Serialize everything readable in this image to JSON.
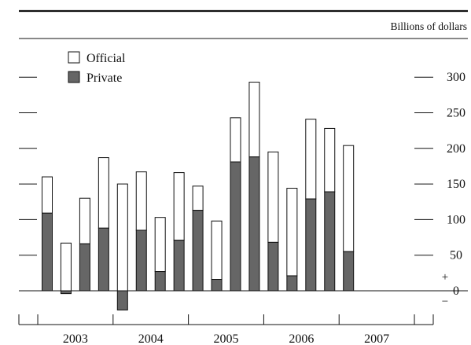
{
  "chart_data": {
    "type": "bar",
    "stacked": true,
    "unit_label": "Billions of dollars",
    "legend": [
      {
        "key": "official",
        "label": "Official",
        "color": "#ffffff"
      },
      {
        "key": "private",
        "label": "Private",
        "color": "#666666"
      }
    ],
    "legend_position": "top-left",
    "ylim": [
      -30,
      300
    ],
    "yticks": [
      0,
      50,
      100,
      150,
      200,
      250,
      300
    ],
    "zero_signs": {
      "plus": "+",
      "minus": "−"
    },
    "years": [
      "2003",
      "2004",
      "2005",
      "2006",
      "2007"
    ],
    "quarters_per_year": 4,
    "bars": [
      {
        "period": "2003 Q1",
        "private": 109,
        "total": 160
      },
      {
        "period": "2003 Q2",
        "private": -4,
        "total": 67
      },
      {
        "period": "2003 Q3",
        "private": 66,
        "total": 130
      },
      {
        "period": "2003 Q4",
        "private": 88,
        "total": 187
      },
      {
        "period": "2004 Q1",
        "private": -27,
        "total": 150
      },
      {
        "period": "2004 Q2",
        "private": 85,
        "total": 167
      },
      {
        "period": "2004 Q3",
        "private": 27,
        "total": 103
      },
      {
        "period": "2004 Q4",
        "private": 71,
        "total": 166
      },
      {
        "period": "2005 Q1",
        "private": 113,
        "total": 147
      },
      {
        "period": "2005 Q2",
        "private": 16,
        "total": 98
      },
      {
        "period": "2005 Q3",
        "private": 181,
        "total": 243
      },
      {
        "period": "2005 Q4",
        "private": 188,
        "total": 293
      },
      {
        "period": "2006 Q1",
        "private": 68,
        "total": 195
      },
      {
        "period": "2006 Q2",
        "private": 21,
        "total": 144
      },
      {
        "period": "2006 Q3",
        "private": 129,
        "total": 241
      },
      {
        "period": "2006 Q4",
        "private": 139,
        "total": 228
      },
      {
        "period": "2007 Q1",
        "private": 55,
        "total": 204
      }
    ]
  }
}
